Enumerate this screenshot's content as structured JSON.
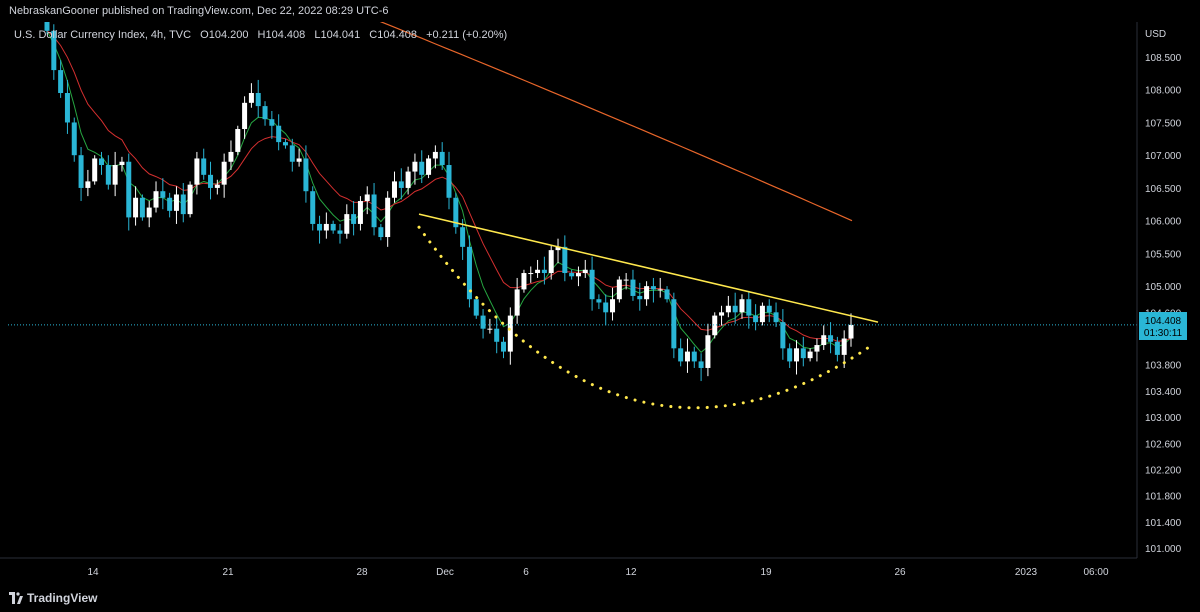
{
  "publisher_line": "NebraskanGooner published on TradingView.com, Dec 22, 2022 08:29 UTC-6",
  "footer_brand": "TradingView",
  "chart_data": {
    "type": "candlestick",
    "instrument": "U.S. Dollar Currency Index, 4h, TVC",
    "ohlc_label": {
      "O": "104.200",
      "H": "104.408",
      "L": "104.041",
      "C": "104.408",
      "change": "+0.211 (+0.20%)"
    },
    "currency": "USD",
    "y_ticks": [
      "108.500",
      "108.000",
      "107.500",
      "107.000",
      "106.500",
      "106.000",
      "105.500",
      "105.000",
      "104.600",
      "103.800",
      "103.400",
      "103.000",
      "102.600",
      "102.200",
      "101.800",
      "101.400",
      "101.000"
    ],
    "x_ticks": [
      "14",
      "21",
      "28",
      "Dec",
      "6",
      "12",
      "19",
      "26",
      "2023",
      "06:00"
    ],
    "last_price": "104.408",
    "countdown": "01:30:11",
    "ylim": [
      100.8,
      109.2
    ],
    "colors": {
      "up": "#ffffff",
      "down": "#2ab6d6",
      "ema_short": "#26a641",
      "ema_mid": "#d32f2f",
      "ema_long": "#e8662a",
      "trendline": "#ffe84d",
      "dotted_curve": "#ffe84d",
      "price_line": "#2ab6d6"
    },
    "closes": [
      108.9,
      108.3,
      107.95,
      107.5,
      107.0,
      106.5,
      106.6,
      106.95,
      106.85,
      106.55,
      106.85,
      106.9,
      106.05,
      106.35,
      106.05,
      106.2,
      106.45,
      106.35,
      106.15,
      106.4,
      106.1,
      106.55,
      106.95,
      106.7,
      106.5,
      106.55,
      106.9,
      107.05,
      107.4,
      107.8,
      107.95,
      107.75,
      107.55,
      107.45,
      107.2,
      107.15,
      106.9,
      106.95,
      106.45,
      105.95,
      105.85,
      105.95,
      105.85,
      105.8,
      106.1,
      105.95,
      106.3,
      106.4,
      105.9,
      105.75,
      106.35,
      106.6,
      106.5,
      106.75,
      106.9,
      106.7,
      106.95,
      107.05,
      106.85,
      106.35,
      105.9,
      105.6,
      104.8,
      104.55,
      104.35,
      104.35,
      104.15,
      104.0,
      104.55,
      104.95,
      105.2,
      105.2,
      105.25,
      105.2,
      105.55,
      105.6,
      105.2,
      105.15,
      105.2,
      105.25,
      104.8,
      104.75,
      104.6,
      104.8,
      105.1,
      105.1,
      104.85,
      104.8,
      105.0,
      104.95,
      104.95,
      104.8,
      104.05,
      103.85,
      104.0,
      103.85,
      103.75,
      104.25,
      104.55,
      104.6,
      104.7,
      104.6,
      104.8,
      104.55,
      104.45,
      104.7,
      104.6,
      104.45,
      104.05,
      103.85,
      104.05,
      103.9,
      104.0,
      104.1,
      104.25,
      104.15,
      103.95,
      104.2,
      104.408
    ],
    "trendline": {
      "from": [
        "Nov 30",
        106.1
      ],
      "to": [
        "Dec 23",
        104.45
      ]
    },
    "rounding_bottom": {
      "from": [
        "Nov 30",
        105.9
      ],
      "bottom": [
        "Dec 14",
        103.35
      ],
      "to": [
        "Dec 22",
        104.1
      ]
    }
  }
}
